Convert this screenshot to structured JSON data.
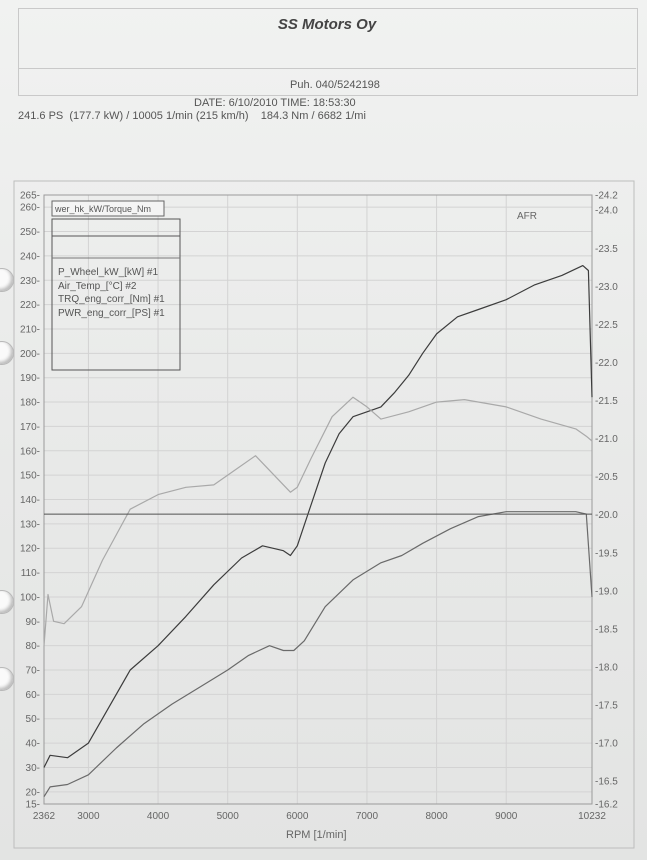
{
  "header": {
    "company": "SS Motors Oy",
    "phone": "Puh. 040/5242198",
    "date_line": "DATE: 6/10/2010  TIME: 18:53:30",
    "summary": "241.6 PS  (177.7 kW) / 10005 1/min (215 km/h)    184.3 Nm / 6682 1/mi"
  },
  "chart_data": {
    "type": "line",
    "xlabel": "RPM  [1/min]",
    "x_ticks": [
      "2362",
      "3000",
      "4000",
      "5000",
      "6000",
      "7000",
      "8000",
      "9000",
      "10232"
    ],
    "xlim": [
      2362,
      10232
    ],
    "ylim": [
      15,
      265
    ],
    "y_ticks": [
      "15",
      "20",
      "30",
      "40",
      "50",
      "60",
      "70",
      "80",
      "90",
      "100",
      "110",
      "120",
      "130",
      "140",
      "150",
      "160",
      "170",
      "180",
      "190",
      "200",
      "210",
      "220",
      "230",
      "240",
      "250",
      "260",
      "265"
    ],
    "y2_label": "AFR",
    "y2lim": [
      16.2,
      24.2
    ],
    "y2_ticks": [
      "-16.2",
      "-16.5",
      "-17.0",
      "-17.5",
      "-18.0",
      "-18.5",
      "-19.0",
      "-19.5",
      "-20.0",
      "-20.5",
      "-21.0",
      "-21.5",
      "-22.0",
      "-22.5",
      "-23.0",
      "-23.5",
      "-24.0",
      "-24.2"
    ],
    "grid": true,
    "legend_title": "wer_hk_kW/Torque_Nm",
    "legend_position": "top-left",
    "reference_line": 134,
    "series": [
      {
        "name": "PWR_eng_corr_[PS] #1",
        "color": "#3c3c3c",
        "x": [
          2362,
          2450,
          2700,
          3000,
          3300,
          3600,
          4000,
          4400,
          4800,
          5200,
          5500,
          5800,
          5900,
          6000,
          6200,
          6400,
          6600,
          6800,
          7000,
          7200,
          7400,
          7600,
          7800,
          8000,
          8300,
          8600,
          9000,
          9400,
          9800,
          10100,
          10180,
          10232
        ],
        "values": [
          30,
          35,
          34,
          40,
          55,
          70,
          80,
          92,
          105,
          116,
          121,
          119,
          117,
          121,
          138,
          155,
          167,
          174,
          176,
          178,
          184,
          191,
          200,
          208,
          215,
          218,
          222,
          228,
          232,
          236,
          234,
          182
        ]
      },
      {
        "name": "TRQ_eng_corr_[Nm] #1",
        "color": "#a9a9a9",
        "x": [
          2362,
          2420,
          2500,
          2650,
          2900,
          3200,
          3600,
          4000,
          4400,
          4800,
          5100,
          5400,
          5700,
          5900,
          6000,
          6200,
          6500,
          6800,
          7000,
          7200,
          7600,
          8000,
          8400,
          9000,
          9500,
          10000,
          10150,
          10232
        ],
        "values": [
          80,
          101,
          90,
          89,
          96,
          115,
          136,
          142,
          145,
          146,
          152,
          158,
          149,
          143,
          145,
          157,
          174,
          182,
          178,
          173,
          176,
          180,
          181,
          178,
          173,
          169,
          166,
          164
        ]
      },
      {
        "name": "P_Wheel_kW_[kW] #1",
        "color": "#6a6a6a",
        "x": [
          2362,
          2450,
          2700,
          3000,
          3400,
          3800,
          4200,
          4600,
          5000,
          5300,
          5600,
          5800,
          5950,
          6100,
          6400,
          6800,
          7200,
          7500,
          7800,
          8200,
          8600,
          9000,
          9500,
          10000,
          10150,
          10232
        ],
        "values": [
          18,
          22,
          23,
          27,
          38,
          48,
          56,
          63,
          70,
          76,
          80,
          78,
          78,
          82,
          96,
          107,
          114,
          117,
          122,
          128,
          133,
          135,
          135,
          135,
          134,
          100
        ]
      },
      {
        "name": "Air_Temp_[°C] #2",
        "color": "#505050",
        "x": [
          2362,
          10232
        ],
        "values": [
          134,
          134
        ]
      }
    ]
  }
}
